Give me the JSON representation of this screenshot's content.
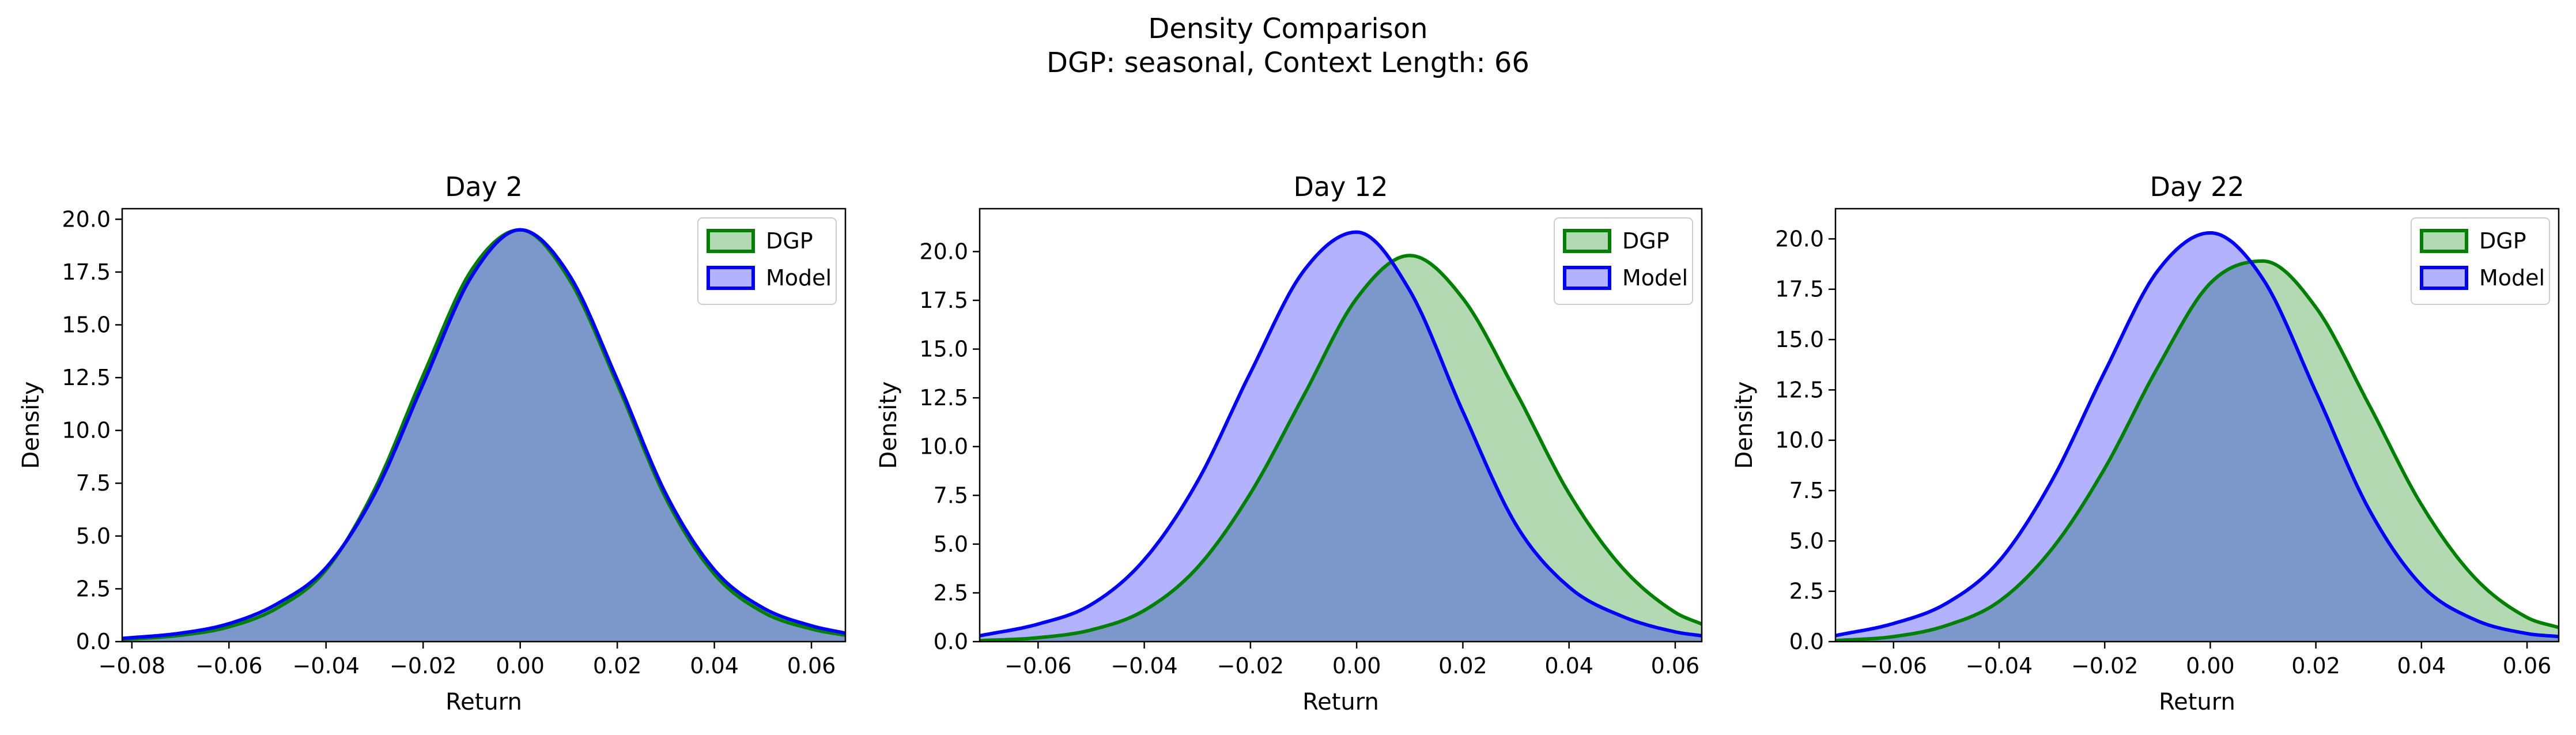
{
  "figure": {
    "title_line1": "Density Comparison",
    "title_line2": "DGP: seasonal, Context Length: 66"
  },
  "colors": {
    "dgp_line": "#008000",
    "dgp_fill": "#008000",
    "model_line": "#0000ff",
    "model_fill": "#0000ff"
  },
  "chart_data": [
    {
      "type": "area",
      "title": "Day 2",
      "xlabel": "Return",
      "ylabel": "Density",
      "xlim": [
        -0.082,
        0.067
      ],
      "ylim": [
        0,
        20.5
      ],
      "xticks": [
        -0.08,
        -0.06,
        -0.04,
        -0.02,
        0.0,
        0.02,
        0.04,
        0.06
      ],
      "xtick_labels": [
        "−0.08",
        "−0.06",
        "−0.04",
        "−0.02",
        "0.00",
        "0.02",
        "0.04",
        "0.06"
      ],
      "yticks": [
        0,
        2.5,
        5,
        7.5,
        10,
        12.5,
        15,
        17.5,
        20
      ],
      "ytick_labels": [
        "0.0",
        "2.5",
        "5.0",
        "7.5",
        "10.0",
        "12.5",
        "15.0",
        "17.5",
        "20.0"
      ],
      "legend": {
        "position": "upper right",
        "entries": [
          "DGP",
          "Model"
        ]
      },
      "series": [
        {
          "name": "DGP",
          "x": [
            -0.082,
            -0.07,
            -0.06,
            -0.05,
            -0.04,
            -0.03,
            -0.02,
            -0.01,
            0.0,
            0.01,
            0.02,
            0.03,
            0.04,
            0.05,
            0.06,
            0.067
          ],
          "y": [
            0.1,
            0.3,
            0.7,
            1.6,
            3.4,
            7.2,
            12.6,
            17.6,
            19.5,
            17.2,
            12.2,
            6.8,
            3.2,
            1.4,
            0.6,
            0.3
          ]
        },
        {
          "name": "Model",
          "x": [
            -0.082,
            -0.07,
            -0.06,
            -0.05,
            -0.04,
            -0.03,
            -0.02,
            -0.01,
            0.0,
            0.01,
            0.02,
            0.03,
            0.04,
            0.05,
            0.06,
            0.067
          ],
          "y": [
            0.15,
            0.4,
            0.85,
            1.8,
            3.5,
            7.0,
            12.2,
            17.3,
            19.5,
            17.4,
            12.4,
            7.0,
            3.4,
            1.6,
            0.75,
            0.4
          ]
        }
      ]
    },
    {
      "type": "area",
      "title": "Day 12",
      "xlabel": "Return",
      "ylabel": "Density",
      "xlim": [
        -0.071,
        0.065
      ],
      "ylim": [
        0,
        22.2
      ],
      "xticks": [
        -0.06,
        -0.04,
        -0.02,
        0.0,
        0.02,
        0.04,
        0.06
      ],
      "xtick_labels": [
        "−0.06",
        "−0.04",
        "−0.02",
        "0.00",
        "0.02",
        "0.04",
        "0.06"
      ],
      "yticks": [
        0,
        2.5,
        5,
        7.5,
        10,
        12.5,
        15,
        17.5,
        20
      ],
      "ytick_labels": [
        "0.0",
        "2.5",
        "5.0",
        "7.5",
        "10.0",
        "12.5",
        "15.0",
        "17.5",
        "20.0"
      ],
      "legend": {
        "position": "upper right",
        "entries": [
          "DGP",
          "Model"
        ]
      },
      "series": [
        {
          "name": "DGP",
          "x": [
            -0.071,
            -0.06,
            -0.05,
            -0.04,
            -0.03,
            -0.02,
            -0.01,
            0.0,
            0.01,
            0.02,
            0.03,
            0.04,
            0.05,
            0.06,
            0.065
          ],
          "y": [
            0.05,
            0.2,
            0.6,
            1.6,
            3.8,
            7.6,
            12.6,
            17.6,
            19.8,
            17.6,
            12.8,
            7.6,
            3.8,
            1.5,
            0.9
          ]
        },
        {
          "name": "Model",
          "x": [
            -0.071,
            -0.06,
            -0.05,
            -0.04,
            -0.03,
            -0.02,
            -0.01,
            0.0,
            0.01,
            0.02,
            0.03,
            0.04,
            0.05,
            0.06,
            0.065
          ],
          "y": [
            0.3,
            0.9,
            1.9,
            4.2,
            8.2,
            13.8,
            19.0,
            21.0,
            18.0,
            11.8,
            6.0,
            2.8,
            1.3,
            0.5,
            0.3
          ]
        }
      ]
    },
    {
      "type": "area",
      "title": "Day 22",
      "xlabel": "Return",
      "ylabel": "Density",
      "xlim": [
        -0.071,
        0.066
      ],
      "ylim": [
        0,
        21.5
      ],
      "xticks": [
        -0.06,
        -0.04,
        -0.02,
        0.0,
        0.02,
        0.04,
        0.06
      ],
      "xtick_labels": [
        "−0.06",
        "−0.04",
        "−0.02",
        "0.00",
        "0.02",
        "0.04",
        "0.06"
      ],
      "yticks": [
        0,
        2.5,
        5,
        7.5,
        10,
        12.5,
        15,
        17.5,
        20
      ],
      "ytick_labels": [
        "0.0",
        "2.5",
        "5.0",
        "7.5",
        "10.0",
        "12.5",
        "15.0",
        "17.5",
        "20.0"
      ],
      "legend": {
        "position": "upper right",
        "entries": [
          "DGP",
          "Model"
        ]
      },
      "series": [
        {
          "name": "DGP",
          "x": [
            -0.071,
            -0.06,
            -0.05,
            -0.04,
            -0.03,
            -0.02,
            -0.01,
            0.0,
            0.01,
            0.02,
            0.03,
            0.04,
            0.05,
            0.06,
            0.066
          ],
          "y": [
            0.05,
            0.25,
            0.8,
            2.0,
            4.6,
            8.6,
            13.6,
            17.8,
            18.9,
            16.6,
            11.8,
            6.8,
            3.2,
            1.2,
            0.7
          ]
        },
        {
          "name": "Model",
          "x": [
            -0.071,
            -0.06,
            -0.05,
            -0.04,
            -0.03,
            -0.02,
            -0.01,
            0.0,
            0.01,
            0.02,
            0.03,
            0.04,
            0.05,
            0.06,
            0.066
          ],
          "y": [
            0.3,
            0.9,
            1.9,
            4.0,
            8.0,
            13.4,
            18.4,
            20.3,
            18.0,
            12.4,
            6.6,
            2.8,
            1.1,
            0.4,
            0.25
          ]
        }
      ]
    }
  ]
}
